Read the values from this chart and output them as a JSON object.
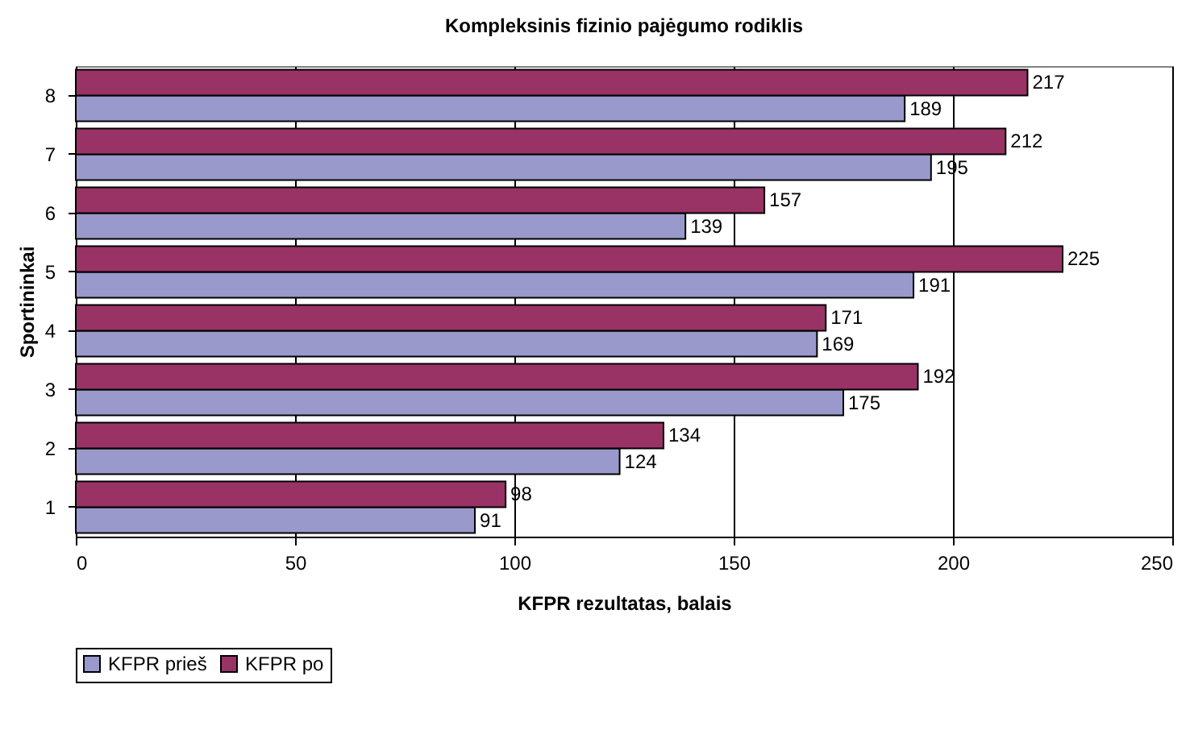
{
  "chart_data": {
    "type": "bar",
    "orientation": "horizontal",
    "title": "Kompleksinis fizinio pajėgumo rodiklis",
    "xlabel": "KFPR rezultatas, balais",
    "ylabel": "Sportininkai",
    "categories": [
      "8",
      "7",
      "6",
      "5",
      "4",
      "3",
      "2",
      "1"
    ],
    "series": [
      {
        "name": "KFPR prieš",
        "color": "#9999cc",
        "values": [
          189,
          195,
          139,
          191,
          169,
          175,
          124,
          91
        ]
      },
      {
        "name": "KFPR po",
        "color": "#993366",
        "values": [
          217,
          212,
          157,
          225,
          171,
          192,
          134,
          98
        ]
      }
    ],
    "xlim": [
      0,
      250
    ],
    "xticks": [
      0,
      50,
      100,
      150,
      200,
      250
    ],
    "grid": "x",
    "legend": "bottom",
    "data_labels": true
  }
}
